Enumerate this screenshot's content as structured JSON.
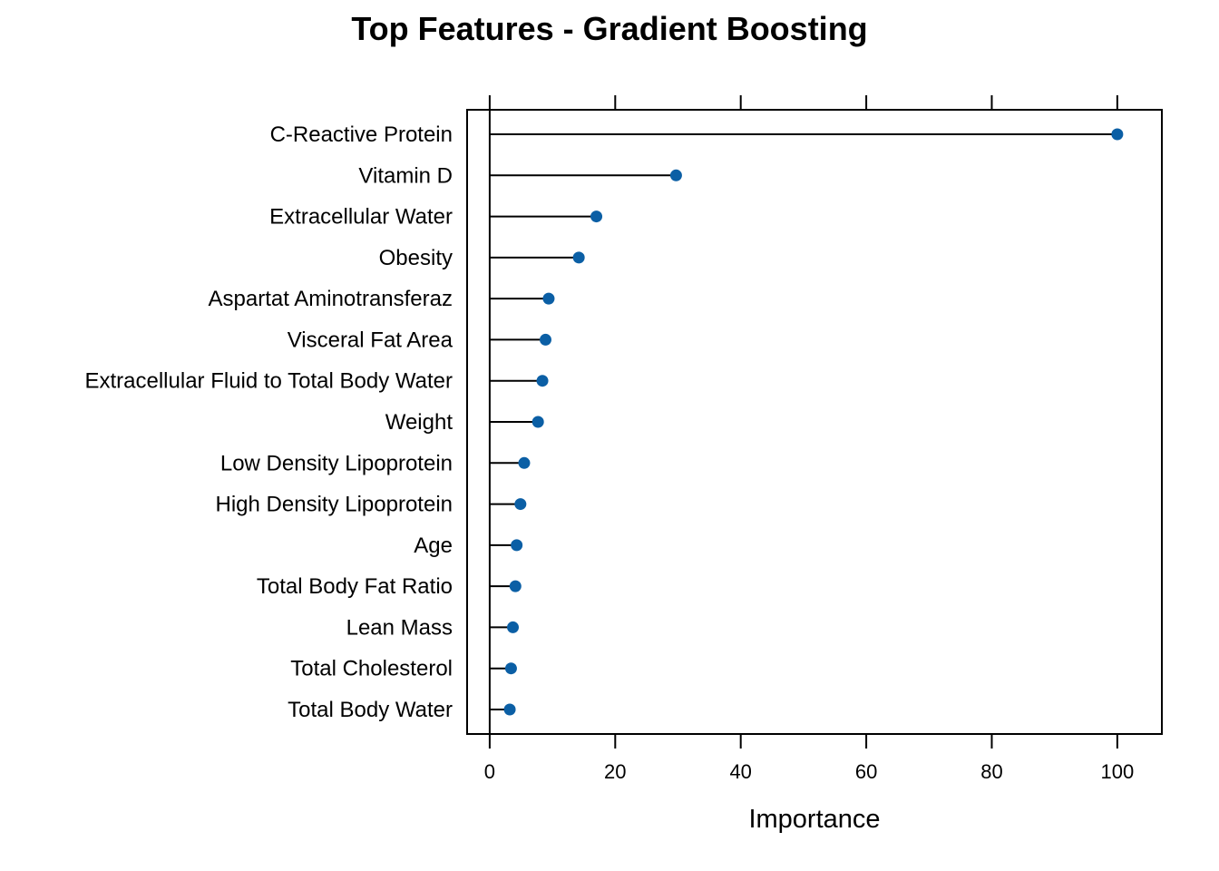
{
  "chart_data": {
    "type": "scatter",
    "style": "dotplot-lollipop",
    "title": "Top Features - Gradient Boosting",
    "xlabel": "Importance",
    "ylabel": "",
    "xlim": [
      -3.6,
      107.1
    ],
    "xticks": [
      0,
      20,
      40,
      60,
      80,
      100
    ],
    "xtick_labels": [
      "0",
      "20",
      "40",
      "60",
      "80",
      "100"
    ],
    "grid": false,
    "point_color": "#0B5FA5",
    "categories": [
      "C-Reactive Protein",
      "Vitamin D",
      "Extracellular Water",
      "Obesity",
      "Aspartat Aminotransferaz",
      "Visceral Fat Area",
      "Extracellular Fluid to Total Body Water",
      "Weight",
      "Low Density Lipoprotein",
      "High Density Lipoprotein",
      "Age",
      "Total Body Fat Ratio",
      "Lean Mass",
      "Total Cholesterol",
      "Total Body Water"
    ],
    "values": [
      100,
      29.7,
      17.0,
      14.2,
      9.4,
      8.9,
      8.4,
      7.7,
      5.5,
      4.9,
      4.3,
      4.1,
      3.7,
      3.4,
      3.2
    ]
  }
}
